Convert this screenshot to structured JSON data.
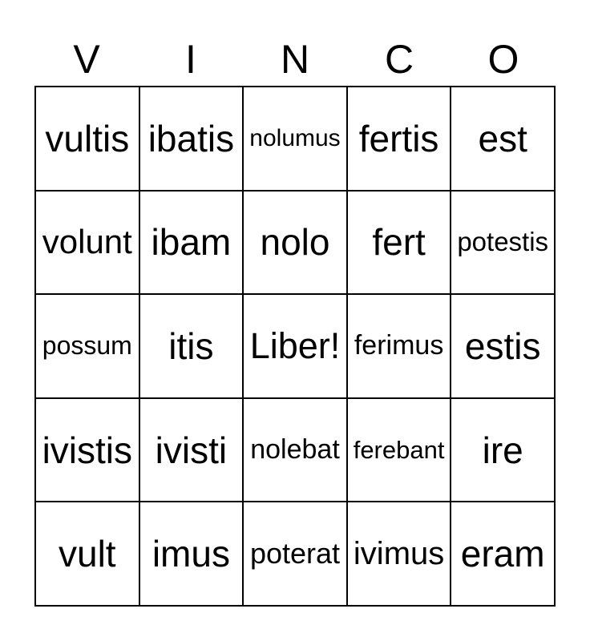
{
  "title_letters": [
    "V",
    "I",
    "N",
    "C",
    "O"
  ],
  "cells": [
    [
      "vultis",
      "ibatis",
      "nolumus",
      "fertis",
      "est"
    ],
    [
      "volunt",
      "ibam",
      "nolo",
      "fert",
      "potestis"
    ],
    [
      "possum",
      "itis",
      "Liber!",
      "ferimus",
      "estis"
    ],
    [
      "ivistis",
      "ivisti",
      "nolebat",
      "ferebant",
      "ire"
    ],
    [
      "vult",
      "imus",
      "poterat",
      "ivimus",
      "eram"
    ]
  ]
}
